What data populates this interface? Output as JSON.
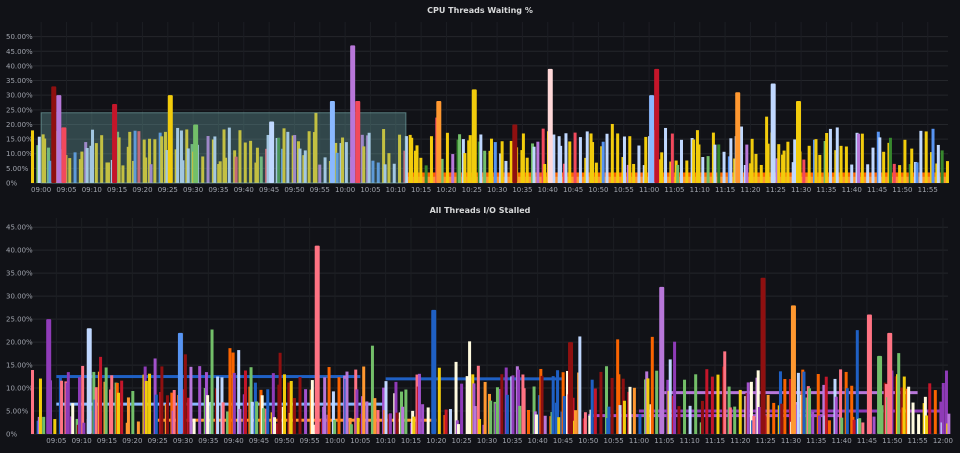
{
  "panels": {
    "cpu": {
      "title": "CPU Threads Waiting %"
    },
    "io": {
      "title": "All Threads I/O Stalled"
    }
  },
  "palette": [
    "#f2cc0c",
    "#fade2a",
    "#c0d8ff",
    "#8ab8ff",
    "#73bf69",
    "#37872d",
    "#f2495c",
    "#c4162a",
    "#8f1010",
    "#ff9830",
    "#fa6400",
    "#b877d9",
    "#8f3bb8",
    "#ffffff",
    "#ffd8d8",
    "#5794f2",
    "#1f60c4",
    "#a352cc",
    "#e0b400",
    "#ff7383",
    "#56a64b",
    "#fffbe0"
  ],
  "chart_data": [
    {
      "type": "bar",
      "title": "CPU Threads Waiting %",
      "y_unit": "%",
      "ylim": [
        0,
        55
      ],
      "y_ticks": [
        "0%",
        "5.00%",
        "10.00%",
        "15.00%",
        "20.00%",
        "25.00%",
        "30.00%",
        "35.00%",
        "40.00%",
        "45.00%",
        "50.00%"
      ],
      "x_ticks": [
        "09:00",
        "09:05",
        "09:10",
        "09:15",
        "09:20",
        "09:25",
        "09:30",
        "09:35",
        "09:40",
        "09:45",
        "09:50",
        "09:55",
        "10:00",
        "10:05",
        "10:10",
        "10:15",
        "10:20",
        "10:25",
        "10:30",
        "10:35",
        "10:40",
        "10:45",
        "10:50",
        "10:55",
        "11:00",
        "11:05",
        "11:10",
        "11:15",
        "11:20",
        "11:25",
        "11:30",
        "11:35",
        "11:40",
        "11:45",
        "11:50",
        "11:55"
      ],
      "grid": true,
      "legend": "none",
      "spikes": [
        {
          "x": "09:02",
          "y": 33,
          "color": "#8f1010"
        },
        {
          "x": "09:03",
          "y": 30,
          "color": "#b877d9"
        },
        {
          "x": "09:04",
          "y": 19,
          "color": "#f2495c"
        },
        {
          "x": "09:14",
          "y": 27,
          "color": "#c4162a"
        },
        {
          "x": "09:25",
          "y": 30,
          "color": "#f2cc0c"
        },
        {
          "x": "09:30",
          "y": 20,
          "color": "#73bf69"
        },
        {
          "x": "09:45",
          "y": 21,
          "color": "#c0d8ff"
        },
        {
          "x": "09:57",
          "y": 28,
          "color": "#8ab8ff"
        },
        {
          "x": "10:01",
          "y": 47,
          "color": "#b877d9"
        },
        {
          "x": "10:02",
          "y": 28,
          "color": "#f2495c"
        },
        {
          "x": "10:18",
          "y": 28,
          "color": "#ff9830"
        },
        {
          "x": "10:25",
          "y": 32,
          "color": "#f2cc0c"
        },
        {
          "x": "10:33",
          "y": 20,
          "color": "#8f1010"
        },
        {
          "x": "10:40",
          "y": 39,
          "color": "#ffd8d8"
        },
        {
          "x": "11:01",
          "y": 39,
          "color": "#c4162a"
        },
        {
          "x": "11:00",
          "y": 30,
          "color": "#8ab8ff"
        },
        {
          "x": "11:17",
          "y": 31,
          "color": "#ff9830"
        },
        {
          "x": "11:24",
          "y": 34,
          "color": "#c0d8ff"
        },
        {
          "x": "11:29",
          "y": 28,
          "color": "#f2cc0c"
        }
      ],
      "annotation_region": {
        "x_start": "09:00",
        "x_end": "10:12",
        "y_start": 0,
        "y_end": 24
      }
    },
    {
      "type": "bar",
      "title": "All Threads I/O Stalled",
      "y_unit": "%",
      "ylim": [
        0,
        47
      ],
      "y_ticks": [
        "0%",
        "5.00%",
        "10.00%",
        "15.00%",
        "20.00%",
        "25.00%",
        "30.00%",
        "35.00%",
        "40.00%",
        "45.00%"
      ],
      "x_ticks": [
        "09:05",
        "09:10",
        "09:15",
        "09:20",
        "09:25",
        "09:30",
        "09:35",
        "09:40",
        "09:45",
        "09:50",
        "09:55",
        "10:00",
        "10:05",
        "10:10",
        "10:15",
        "10:20",
        "10:25",
        "10:30",
        "10:35",
        "10:40",
        "10:45",
        "10:50",
        "10:55",
        "11:00",
        "11:05",
        "11:10",
        "11:15",
        "11:20",
        "11:25",
        "11:30",
        "11:35",
        "11:40",
        "11:45",
        "11:50",
        "11:55",
        "12:00"
      ],
      "grid": true,
      "legend": "none",
      "spikes": [
        {
          "x": "09:03",
          "y": 25,
          "color": "#8f3bb8"
        },
        {
          "x": "09:11",
          "y": 23,
          "color": "#c0d8ff"
        },
        {
          "x": "09:29",
          "y": 22,
          "color": "#5794f2"
        },
        {
          "x": "09:56",
          "y": 41,
          "color": "#ff7383"
        },
        {
          "x": "10:19",
          "y": 27,
          "color": "#1f60c4"
        },
        {
          "x": "10:46",
          "y": 20,
          "color": "#8f1010"
        },
        {
          "x": "11:04",
          "y": 32,
          "color": "#b877d9"
        },
        {
          "x": "11:24",
          "y": 34,
          "color": "#8f1010"
        },
        {
          "x": "11:30",
          "y": 28,
          "color": "#ff9830"
        },
        {
          "x": "11:45",
          "y": 26,
          "color": "#ff7383"
        },
        {
          "x": "11:49",
          "y": 22,
          "color": "#ff7383"
        },
        {
          "x": "11:47",
          "y": 17,
          "color": "#73bf69"
        }
      ]
    }
  ]
}
